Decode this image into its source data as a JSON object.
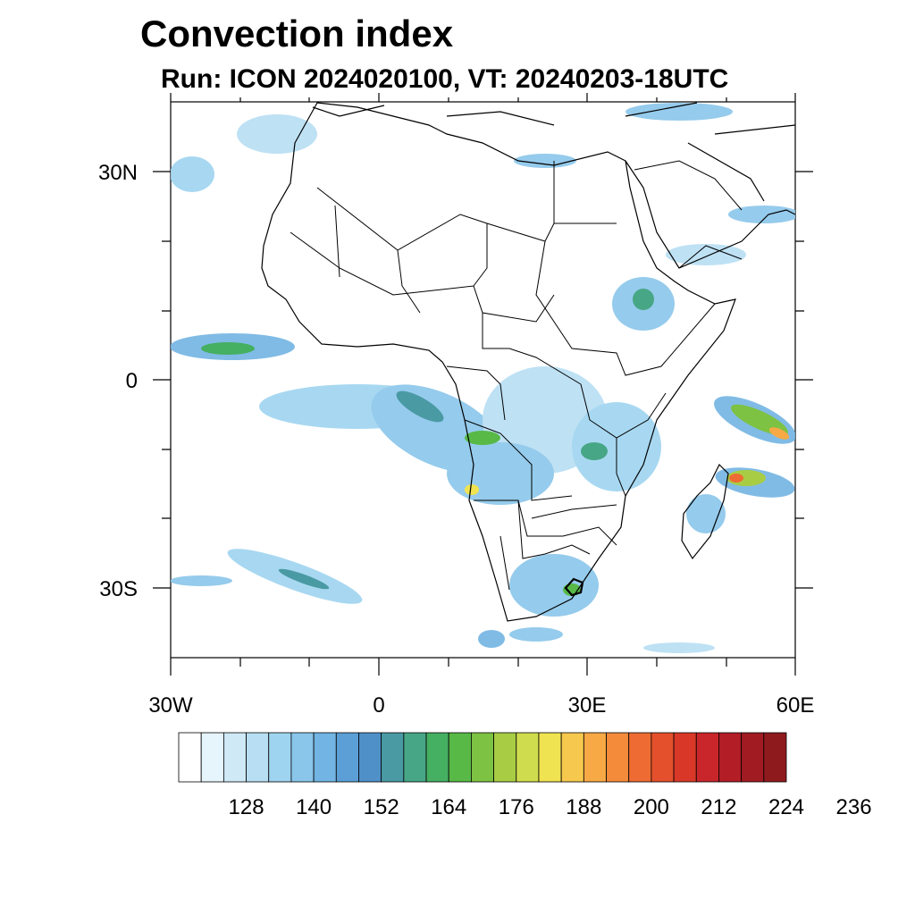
{
  "title": "Convection index",
  "subtitle": "Run: ICON 2024020100,  VT: 20240203-18UTC",
  "map": {
    "lon_range": [
      -30,
      60
    ],
    "lat_range": [
      -40,
      40
    ],
    "y_ticks": [
      "30N",
      "0",
      "30S"
    ],
    "x_ticks": [
      "30W",
      "0",
      "30E",
      "60E"
    ]
  },
  "colorbar": {
    "colors": [
      "#ffffff",
      "#e6f4fb",
      "#cfe9f6",
      "#b7def3",
      "#9fd4f0",
      "#8ac6ea",
      "#72b4e3",
      "#5c9fd6",
      "#4f90c8",
      "#4a9aa4",
      "#47a685",
      "#45af62",
      "#58b947",
      "#7dc242",
      "#a8cd45",
      "#cfdc4d",
      "#f0e351",
      "#f6c84e",
      "#f7a945",
      "#f48b3b",
      "#ee6c33",
      "#e4502c",
      "#d93828",
      "#c8262a",
      "#b21d26",
      "#a11b22",
      "#8f1a1e"
    ],
    "labels": [
      "128",
      "140",
      "152",
      "164",
      "176",
      "188",
      "200",
      "212",
      "224",
      "236"
    ],
    "label_values": [
      128,
      140,
      152,
      164,
      176,
      188,
      200,
      212,
      224,
      236
    ],
    "start_value": 116,
    "step": 4
  }
}
